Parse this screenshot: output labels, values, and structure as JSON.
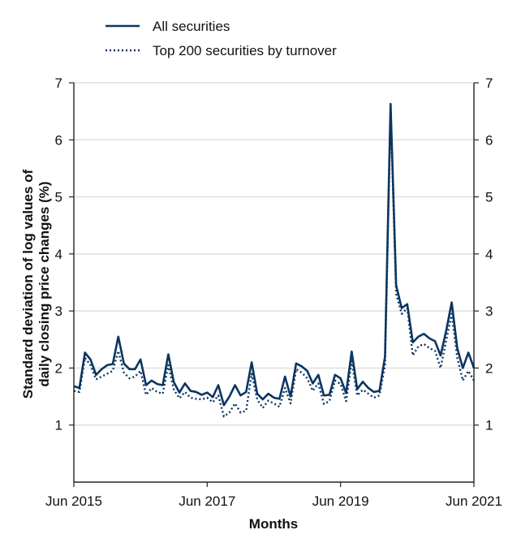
{
  "chart_data": {
    "type": "line",
    "xlabel": "Months",
    "ylabel_line1": "Standard deviation of log values of",
    "ylabel_line2": "daily closing price changes (%)",
    "x_ticks": [
      "Jun 2015",
      "Jun 2017",
      "Jun 2019",
      "Jun 2021"
    ],
    "x_range": [
      "2015-06",
      "2021-06"
    ],
    "ylim": [
      0,
      7
    ],
    "y_ticks": [
      "1",
      "2",
      "3",
      "4",
      "5",
      "6",
      "7"
    ],
    "grid": "horizontal",
    "legend_position": "top",
    "colors": {
      "line": "#0b3560",
      "grid": "#d9d9d9",
      "axis": "#222222"
    },
    "x": [
      "2015-06",
      "2015-07",
      "2015-08",
      "2015-09",
      "2015-10",
      "2015-11",
      "2015-12",
      "2016-01",
      "2016-02",
      "2016-03",
      "2016-04",
      "2016-05",
      "2016-06",
      "2016-07",
      "2016-08",
      "2016-09",
      "2016-10",
      "2016-11",
      "2016-12",
      "2017-01",
      "2017-02",
      "2017-03",
      "2017-04",
      "2017-05",
      "2017-06",
      "2017-07",
      "2017-08",
      "2017-09",
      "2017-10",
      "2017-11",
      "2017-12",
      "2018-01",
      "2018-02",
      "2018-03",
      "2018-04",
      "2018-05",
      "2018-06",
      "2018-07",
      "2018-08",
      "2018-09",
      "2018-10",
      "2018-11",
      "2018-12",
      "2019-01",
      "2019-02",
      "2019-03",
      "2019-04",
      "2019-05",
      "2019-06",
      "2019-07",
      "2019-08",
      "2019-09",
      "2019-10",
      "2019-11",
      "2019-12",
      "2020-01",
      "2020-02",
      "2020-03",
      "2020-04",
      "2020-05",
      "2020-06",
      "2020-07",
      "2020-08",
      "2020-09",
      "2020-10",
      "2020-11",
      "2020-12",
      "2021-01",
      "2021-02",
      "2021-03",
      "2021-04",
      "2021-05",
      "2021-06"
    ],
    "series": [
      {
        "name": "All securities",
        "style": "solid",
        "values": [
          1.68,
          1.65,
          2.27,
          2.15,
          1.88,
          1.98,
          2.05,
          2.07,
          2.55,
          2.08,
          1.98,
          1.98,
          2.15,
          1.7,
          1.78,
          1.72,
          1.7,
          2.24,
          1.75,
          1.57,
          1.73,
          1.6,
          1.58,
          1.53,
          1.57,
          1.49,
          1.7,
          1.35,
          1.5,
          1.7,
          1.52,
          1.58,
          2.1,
          1.55,
          1.45,
          1.55,
          1.48,
          1.46,
          1.85,
          1.5,
          2.08,
          2.03,
          1.95,
          1.73,
          1.88,
          1.52,
          1.53,
          1.88,
          1.82,
          1.56,
          2.29,
          1.63,
          1.76,
          1.65,
          1.58,
          1.6,
          2.2,
          6.63,
          3.45,
          3.05,
          3.12,
          2.45,
          2.55,
          2.6,
          2.52,
          2.47,
          2.22,
          2.65,
          3.15,
          2.35,
          2.0,
          2.27,
          2.0
        ]
      },
      {
        "name": "Top 200 securities by turnover",
        "style": "dotted",
        "values": [
          1.6,
          1.58,
          2.18,
          2.05,
          1.8,
          1.85,
          1.9,
          1.95,
          2.3,
          1.92,
          1.82,
          1.85,
          1.95,
          1.53,
          1.65,
          1.58,
          1.55,
          2.05,
          1.62,
          1.47,
          1.58,
          1.48,
          1.46,
          1.45,
          1.48,
          1.4,
          1.52,
          1.15,
          1.22,
          1.38,
          1.22,
          1.25,
          1.9,
          1.45,
          1.3,
          1.43,
          1.38,
          1.32,
          1.65,
          1.38,
          1.98,
          1.92,
          1.82,
          1.6,
          1.73,
          1.37,
          1.42,
          1.78,
          1.72,
          1.42,
          2.12,
          1.52,
          1.62,
          1.55,
          1.48,
          1.52,
          2.05,
          6.55,
          3.3,
          2.95,
          3.05,
          2.22,
          2.38,
          2.42,
          2.35,
          2.3,
          2.0,
          2.48,
          2.95,
          2.18,
          1.78,
          1.95,
          1.78
        ]
      }
    ]
  }
}
